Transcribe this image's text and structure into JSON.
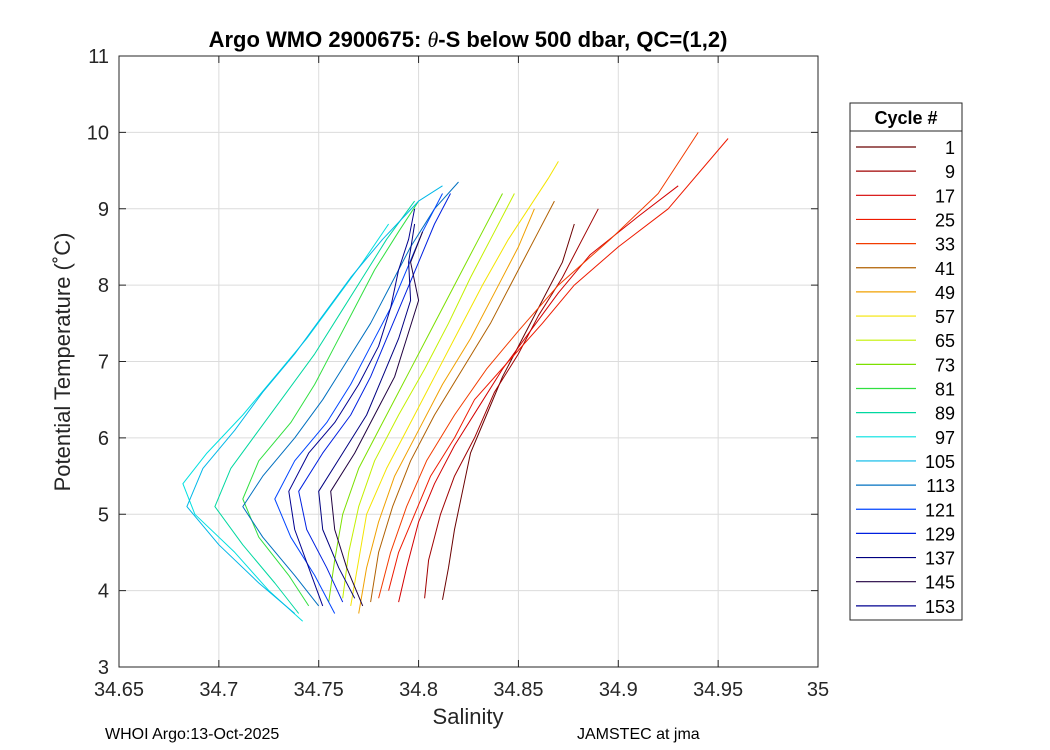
{
  "chart_data": {
    "type": "line",
    "title_prefix": "Argo WMO 2900675: ",
    "title_theta": "θ",
    "title_suffix": "-S below 500 dbar,  QC=(1,2)",
    "xlabel": "Salinity",
    "ylabel": "Potential Temperature (˚C)",
    "xlim": [
      34.65,
      35.0
    ],
    "ylim": [
      3,
      11
    ],
    "xticks": [
      "34.65",
      "34.7",
      "34.75",
      "34.8",
      "34.85",
      "34.9",
      "34.95",
      "35"
    ],
    "yticks": [
      "3",
      "4",
      "5",
      "6",
      "7",
      "8",
      "9",
      "10",
      "11"
    ],
    "grid": true,
    "legend": {
      "title": "Cycle #",
      "placement": "right-outside",
      "entries": [
        {
          "label": "1",
          "color": "#6b0000"
        },
        {
          "label": "9",
          "color": "#a00000"
        },
        {
          "label": "17",
          "color": "#d40000"
        },
        {
          "label": "25",
          "color": "#ee1a00"
        },
        {
          "label": "33",
          "color": "#f23c00"
        },
        {
          "label": "41",
          "color": "#b06000"
        },
        {
          "label": "49",
          "color": "#f0a000"
        },
        {
          "label": "57",
          "color": "#f4e400"
        },
        {
          "label": "65",
          "color": "#c4f000"
        },
        {
          "label": "73",
          "color": "#7ce000"
        },
        {
          "label": "81",
          "color": "#30e040"
        },
        {
          "label": "89",
          "color": "#00d8a0"
        },
        {
          "label": "97",
          "color": "#00e0e0"
        },
        {
          "label": "105",
          "color": "#00b8e8"
        },
        {
          "label": "113",
          "color": "#0070c0"
        },
        {
          "label": "121",
          "color": "#0044ff"
        },
        {
          "label": "129",
          "color": "#0020e0"
        },
        {
          "label": "137",
          "color": "#000080"
        },
        {
          "label": "145",
          "color": "#200040"
        },
        {
          "label": "153",
          "color": "#000090"
        }
      ]
    },
    "series": [
      {
        "name": "1",
        "color": "#6b0000",
        "points": [
          [
            34.812,
            3.88
          ],
          [
            34.815,
            4.3
          ],
          [
            34.818,
            4.8
          ],
          [
            34.822,
            5.3
          ],
          [
            34.826,
            5.8
          ],
          [
            34.834,
            6.3
          ],
          [
            34.842,
            6.8
          ],
          [
            34.852,
            7.3
          ],
          [
            34.862,
            7.8
          ],
          [
            34.872,
            8.3
          ],
          [
            34.878,
            8.8
          ]
        ]
      },
      {
        "name": "9",
        "color": "#a00000",
        "points": [
          [
            34.803,
            3.9
          ],
          [
            34.805,
            4.4
          ],
          [
            34.811,
            5.0
          ],
          [
            34.818,
            5.5
          ],
          [
            34.828,
            6.0
          ],
          [
            34.838,
            6.6
          ],
          [
            34.85,
            7.1
          ],
          [
            34.86,
            7.6
          ],
          [
            34.872,
            8.1
          ],
          [
            34.882,
            8.6
          ],
          [
            34.89,
            9.0
          ]
        ]
      },
      {
        "name": "17",
        "color": "#d40000",
        "points": [
          [
            34.79,
            3.85
          ],
          [
            34.794,
            4.3
          ],
          [
            34.8,
            4.9
          ],
          [
            34.808,
            5.4
          ],
          [
            34.818,
            5.9
          ],
          [
            34.83,
            6.4
          ],
          [
            34.842,
            6.9
          ],
          [
            34.856,
            7.4
          ],
          [
            34.87,
            7.9
          ],
          [
            34.886,
            8.4
          ],
          [
            34.91,
            8.9
          ],
          [
            34.93,
            9.3
          ]
        ]
      },
      {
        "name": "25",
        "color": "#ee1a00",
        "points": [
          [
            34.785,
            4.0
          ],
          [
            34.79,
            4.5
          ],
          [
            34.798,
            5.0
          ],
          [
            34.806,
            5.5
          ],
          [
            34.818,
            6.0
          ],
          [
            34.828,
            6.5
          ],
          [
            34.845,
            7.0
          ],
          [
            34.862,
            7.5
          ],
          [
            34.878,
            8.0
          ],
          [
            34.9,
            8.5
          ],
          [
            34.925,
            9.0
          ],
          [
            34.955,
            9.92
          ]
        ]
      },
      {
        "name": "33",
        "color": "#f23c00",
        "points": [
          [
            34.78,
            3.9
          ],
          [
            34.786,
            4.5
          ],
          [
            34.794,
            5.1
          ],
          [
            34.804,
            5.7
          ],
          [
            34.818,
            6.3
          ],
          [
            34.834,
            6.9
          ],
          [
            34.85,
            7.4
          ],
          [
            34.87,
            8.0
          ],
          [
            34.896,
            8.6
          ],
          [
            34.92,
            9.2
          ],
          [
            34.94,
            10.0
          ]
        ]
      },
      {
        "name": "41",
        "color": "#b06000",
        "points": [
          [
            34.776,
            3.85
          ],
          [
            34.78,
            4.5
          ],
          [
            34.787,
            5.1
          ],
          [
            34.796,
            5.7
          ],
          [
            34.808,
            6.3
          ],
          [
            34.822,
            6.9
          ],
          [
            34.836,
            7.5
          ],
          [
            34.848,
            8.1
          ],
          [
            34.86,
            8.7
          ],
          [
            34.868,
            9.1
          ]
        ]
      },
      {
        "name": "49",
        "color": "#f0a000",
        "points": [
          [
            34.77,
            3.7
          ],
          [
            34.774,
            4.3
          ],
          [
            34.78,
            4.9
          ],
          [
            34.788,
            5.5
          ],
          [
            34.8,
            6.1
          ],
          [
            34.812,
            6.7
          ],
          [
            34.826,
            7.3
          ],
          [
            34.838,
            7.9
          ],
          [
            34.85,
            8.5
          ],
          [
            34.858,
            9.0
          ]
        ]
      },
      {
        "name": "57",
        "color": "#f4e400",
        "points": [
          [
            34.766,
            3.8
          ],
          [
            34.77,
            4.4
          ],
          [
            34.774,
            5.0
          ],
          [
            34.784,
            5.6
          ],
          [
            34.796,
            6.2
          ],
          [
            34.808,
            6.8
          ],
          [
            34.82,
            7.4
          ],
          [
            34.832,
            8.0
          ],
          [
            34.845,
            8.6
          ],
          [
            34.865,
            9.4
          ],
          [
            34.87,
            9.62
          ]
        ]
      },
      {
        "name": "65",
        "color": "#c4f000",
        "points": [
          [
            34.762,
            3.9
          ],
          [
            34.765,
            4.5
          ],
          [
            34.77,
            5.1
          ],
          [
            34.778,
            5.7
          ],
          [
            34.79,
            6.3
          ],
          [
            34.803,
            6.9
          ],
          [
            34.815,
            7.5
          ],
          [
            34.826,
            8.1
          ],
          [
            34.838,
            8.7
          ],
          [
            34.848,
            9.2
          ]
        ]
      },
      {
        "name": "73",
        "color": "#7ce000",
        "points": [
          [
            34.755,
            3.85
          ],
          [
            34.758,
            4.4
          ],
          [
            34.762,
            5.0
          ],
          [
            34.77,
            5.6
          ],
          [
            34.782,
            6.2
          ],
          [
            34.794,
            6.8
          ],
          [
            34.806,
            7.4
          ],
          [
            34.818,
            8.0
          ],
          [
            34.83,
            8.6
          ],
          [
            34.842,
            9.2
          ]
        ]
      },
      {
        "name": "81",
        "color": "#30e040",
        "points": [
          [
            34.745,
            3.8
          ],
          [
            34.735,
            4.2
          ],
          [
            34.72,
            4.7
          ],
          [
            34.712,
            5.2
          ],
          [
            34.72,
            5.7
          ],
          [
            34.736,
            6.2
          ],
          [
            34.748,
            6.7
          ],
          [
            34.758,
            7.2
          ],
          [
            34.768,
            7.7
          ],
          [
            34.778,
            8.2
          ],
          [
            34.79,
            8.7
          ],
          [
            34.8,
            9.1
          ]
        ]
      },
      {
        "name": "89",
        "color": "#00d8a0",
        "points": [
          [
            34.74,
            3.7
          ],
          [
            34.728,
            4.1
          ],
          [
            34.712,
            4.6
          ],
          [
            34.698,
            5.1
          ],
          [
            34.706,
            5.6
          ],
          [
            34.72,
            6.1
          ],
          [
            34.734,
            6.6
          ],
          [
            34.748,
            7.1
          ],
          [
            34.76,
            7.6
          ],
          [
            34.772,
            8.1
          ],
          [
            34.784,
            8.6
          ],
          [
            34.798,
            9.1
          ]
        ]
      },
      {
        "name": "97",
        "color": "#00e0e0",
        "points": [
          [
            34.742,
            3.6
          ],
          [
            34.725,
            4.0
          ],
          [
            34.708,
            4.5
          ],
          [
            34.688,
            5.0
          ],
          [
            34.682,
            5.4
          ],
          [
            34.694,
            5.8
          ],
          [
            34.712,
            6.3
          ],
          [
            34.728,
            6.8
          ],
          [
            34.744,
            7.3
          ],
          [
            34.758,
            7.8
          ],
          [
            34.772,
            8.3
          ],
          [
            34.785,
            8.8
          ]
        ]
      },
      {
        "name": "105",
        "color": "#00b8e8",
        "points": [
          [
            34.738,
            3.7
          ],
          [
            34.72,
            4.1
          ],
          [
            34.7,
            4.6
          ],
          [
            34.684,
            5.1
          ],
          [
            34.692,
            5.6
          ],
          [
            34.708,
            6.1
          ],
          [
            34.722,
            6.6
          ],
          [
            34.738,
            7.1
          ],
          [
            34.752,
            7.6
          ],
          [
            34.766,
            8.1
          ],
          [
            34.782,
            8.6
          ],
          [
            34.8,
            9.1
          ],
          [
            34.812,
            9.3
          ]
        ]
      },
      {
        "name": "113",
        "color": "#0070c0",
        "points": [
          [
            34.75,
            3.8
          ],
          [
            34.738,
            4.2
          ],
          [
            34.722,
            4.7
          ],
          [
            34.712,
            5.1
          ],
          [
            34.722,
            5.5
          ],
          [
            34.738,
            6.0
          ],
          [
            34.752,
            6.5
          ],
          [
            34.764,
            7.0
          ],
          [
            34.776,
            7.5
          ],
          [
            34.786,
            8.0
          ],
          [
            34.796,
            8.5
          ],
          [
            34.808,
            9.0
          ],
          [
            34.82,
            9.35
          ]
        ]
      },
      {
        "name": "121",
        "color": "#0044ff",
        "points": [
          [
            34.758,
            3.7
          ],
          [
            34.748,
            4.2
          ],
          [
            34.736,
            4.7
          ],
          [
            34.728,
            5.2
          ],
          [
            34.738,
            5.7
          ],
          [
            34.754,
            6.2
          ],
          [
            34.766,
            6.7
          ],
          [
            34.776,
            7.2
          ],
          [
            34.786,
            7.7
          ],
          [
            34.794,
            8.2
          ],
          [
            34.802,
            8.7
          ],
          [
            34.812,
            9.2
          ]
        ]
      },
      {
        "name": "129",
        "color": "#0020e0",
        "points": [
          [
            34.762,
            3.85
          ],
          [
            34.754,
            4.3
          ],
          [
            34.744,
            4.8
          ],
          [
            34.74,
            5.3
          ],
          [
            34.752,
            5.8
          ],
          [
            34.766,
            6.3
          ],
          [
            34.776,
            6.8
          ],
          [
            34.784,
            7.3
          ],
          [
            34.792,
            7.8
          ],
          [
            34.8,
            8.3
          ],
          [
            34.808,
            8.8
          ],
          [
            34.816,
            9.2
          ]
        ]
      },
      {
        "name": "137",
        "color": "#000080",
        "points": [
          [
            34.768,
            3.9
          ],
          [
            34.76,
            4.3
          ],
          [
            34.752,
            4.8
          ],
          [
            34.75,
            5.3
          ],
          [
            34.762,
            5.8
          ],
          [
            34.774,
            6.3
          ],
          [
            34.782,
            6.8
          ],
          [
            34.79,
            7.3
          ],
          [
            34.796,
            7.8
          ],
          [
            34.795,
            8.3
          ],
          [
            34.798,
            8.8
          ]
        ]
      },
      {
        "name": "145",
        "color": "#200040",
        "points": [
          [
            34.772,
            3.8
          ],
          [
            34.764,
            4.3
          ],
          [
            34.758,
            4.8
          ],
          [
            34.756,
            5.3
          ],
          [
            34.768,
            5.8
          ],
          [
            34.778,
            6.3
          ],
          [
            34.788,
            6.8
          ],
          [
            34.794,
            7.3
          ],
          [
            34.8,
            7.8
          ],
          [
            34.796,
            8.3
          ],
          [
            34.802,
            8.7
          ]
        ]
      },
      {
        "name": "153",
        "color": "#000090",
        "points": [
          [
            34.752,
            3.8
          ],
          [
            34.745,
            4.3
          ],
          [
            34.738,
            4.8
          ],
          [
            34.735,
            5.3
          ],
          [
            34.745,
            5.8
          ],
          [
            34.758,
            6.2
          ],
          [
            34.77,
            6.7
          ],
          [
            34.78,
            7.2
          ],
          [
            34.786,
            7.7
          ],
          [
            34.79,
            8.2
          ],
          [
            34.795,
            8.6
          ],
          [
            34.798,
            9.0
          ]
        ]
      }
    ]
  },
  "footer": {
    "left": "WHOI Argo:13-Oct-2025",
    "right": "JAMSTEC at jma"
  }
}
